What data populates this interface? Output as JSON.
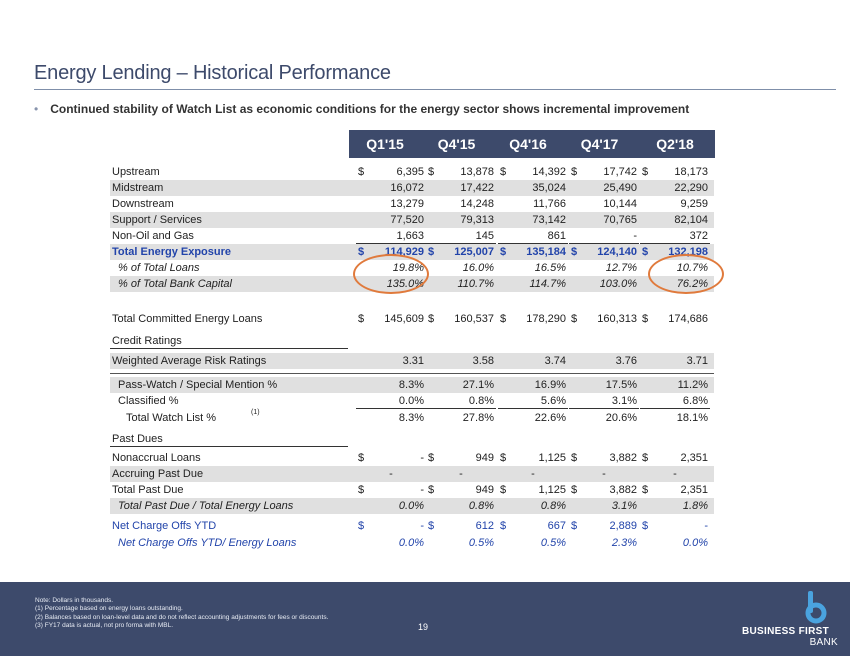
{
  "title": "Energy Lending – Historical Performance",
  "bullet": "Continued stability of Watch List as economic conditions for the energy sector shows incremental improvement",
  "columns": [
    "Q1'15",
    "Q4'15",
    "Q4'16",
    "Q4'17",
    "Q2'18"
  ],
  "sections": {
    "credit": "Credit Ratings",
    "past_dues": "Past Dues"
  },
  "rows": [
    {
      "label": "Upstream",
      "cells": [
        [
          "$",
          "6,395"
        ],
        [
          "$",
          "13,878"
        ],
        [
          "$",
          "14,392"
        ],
        [
          "$",
          "17,742"
        ],
        [
          "$",
          "18,173"
        ]
      ]
    },
    {
      "label": "Midstream",
      "cells": [
        [
          "",
          "16,072"
        ],
        [
          "",
          "17,422"
        ],
        [
          "",
          "35,024"
        ],
        [
          "",
          "25,490"
        ],
        [
          "",
          "22,290"
        ]
      ]
    },
    {
      "label": "Downstream",
      "cells": [
        [
          "",
          "13,279"
        ],
        [
          "",
          "14,248"
        ],
        [
          "",
          "11,766"
        ],
        [
          "",
          "10,144"
        ],
        [
          "",
          "9,259"
        ]
      ]
    },
    {
      "label": "Support / Services",
      "cells": [
        [
          "",
          "77,520"
        ],
        [
          "",
          "79,313"
        ],
        [
          "",
          "73,142"
        ],
        [
          "",
          "70,765"
        ],
        [
          "",
          "82,104"
        ]
      ]
    },
    {
      "label": "Non-Oil and Gas",
      "cells": [
        [
          "",
          "1,663"
        ],
        [
          "",
          "145"
        ],
        [
          "",
          "861"
        ],
        [
          "",
          "-"
        ],
        [
          "",
          "372"
        ]
      ]
    },
    {
      "label": "Total Energy Exposure",
      "cells": [
        [
          "$",
          "114,929"
        ],
        [
          "$",
          "125,007"
        ],
        [
          "$",
          "135,184"
        ],
        [
          "$",
          "124,140"
        ],
        [
          "$",
          "132,198"
        ]
      ]
    },
    {
      "label": "% of Total Loans",
      "cells": [
        [
          "",
          "19.8%"
        ],
        [
          "",
          "16.0%"
        ],
        [
          "",
          "16.5%"
        ],
        [
          "",
          "12.7%"
        ],
        [
          "",
          "10.7%"
        ]
      ]
    },
    {
      "label": "% of Total Bank Capital",
      "cells": [
        [
          "",
          "135.0%"
        ],
        [
          "",
          "110.7%"
        ],
        [
          "",
          "114.7%"
        ],
        [
          "",
          "103.0%"
        ],
        [
          "",
          "76.2%"
        ]
      ]
    },
    {
      "label": "Total Committed Energy Loans",
      "cells": [
        [
          "$",
          "145,609"
        ],
        [
          "$",
          "160,537"
        ],
        [
          "$",
          "178,290"
        ],
        [
          "$",
          "160,313"
        ],
        [
          "$",
          "174,686"
        ]
      ]
    },
    {
      "label": "Weighted Average Risk Ratings",
      "cells": [
        [
          "",
          "3.31"
        ],
        [
          "",
          "3.58"
        ],
        [
          "",
          "3.74"
        ],
        [
          "",
          "3.76"
        ],
        [
          "",
          "3.71"
        ]
      ]
    },
    {
      "label": "Pass-Watch / Special Mention %",
      "cells": [
        [
          "",
          "8.3%"
        ],
        [
          "",
          "27.1%"
        ],
        [
          "",
          "16.9%"
        ],
        [
          "",
          "17.5%"
        ],
        [
          "",
          "11.2%"
        ]
      ]
    },
    {
      "label": "Classified %",
      "cells": [
        [
          "",
          "0.0%"
        ],
        [
          "",
          "0.8%"
        ],
        [
          "",
          "5.6%"
        ],
        [
          "",
          "3.1%"
        ],
        [
          "",
          "6.8%"
        ]
      ]
    },
    {
      "label": "Total Watch List %",
      "sup": "(1)",
      "cells": [
        [
          "",
          "8.3%"
        ],
        [
          "",
          "27.8%"
        ],
        [
          "",
          "22.6%"
        ],
        [
          "",
          "20.6%"
        ],
        [
          "",
          "18.1%"
        ]
      ]
    },
    {
      "label": "Nonaccrual Loans",
      "cells": [
        [
          "$",
          "-"
        ],
        [
          "$",
          "949"
        ],
        [
          "$",
          "1,125"
        ],
        [
          "$",
          "3,882"
        ],
        [
          "$",
          "2,351"
        ]
      ]
    },
    {
      "label": "Accruing Past Due",
      "cells": [
        [
          "",
          "-"
        ],
        [
          "",
          "-"
        ],
        [
          "",
          "-"
        ],
        [
          "",
          "-"
        ],
        [
          "",
          "-"
        ]
      ]
    },
    {
      "label": "Total Past Due",
      "cells": [
        [
          "$",
          "-"
        ],
        [
          "$",
          "949"
        ],
        [
          "$",
          "1,125"
        ],
        [
          "$",
          "3,882"
        ],
        [
          "$",
          "2,351"
        ]
      ]
    },
    {
      "label": "Total Past Due / Total Energy Loans",
      "cells": [
        [
          "",
          "0.0%"
        ],
        [
          "",
          "0.8%"
        ],
        [
          "",
          "0.8%"
        ],
        [
          "",
          "3.1%"
        ],
        [
          "",
          "1.8%"
        ]
      ]
    },
    {
      "label": "Net Charge Offs YTD",
      "cells": [
        [
          "$",
          "-"
        ],
        [
          "$",
          "612"
        ],
        [
          "$",
          "667"
        ],
        [
          "$",
          "2,889"
        ],
        [
          "$",
          "-"
        ]
      ]
    },
    {
      "label": "Net Charge Offs YTD/ Energy Loans",
      "cells": [
        [
          "",
          "0.0%"
        ],
        [
          "",
          "0.5%"
        ],
        [
          "",
          "0.5%"
        ],
        [
          "",
          "2.3%"
        ],
        [
          "",
          "0.0%"
        ]
      ]
    }
  ],
  "notes": [
    "Note: Dollars in thousands.",
    "(1)    Percentage based on energy loans outstanding.",
    "(2)    Balances based on loan-level data and do not reflect accounting adjustments for fees or discounts.",
    "(3)    FY17 data is actual, not pro forma with MBL."
  ],
  "page_number": "19",
  "logo": {
    "line1": "BUSINESS FIRST",
    "line2": "BANK"
  },
  "colors": {
    "header": "#3d4a6b",
    "accent_blue": "#2244aa",
    "circle": "#e07a3c",
    "shade": "#e0e0e0"
  }
}
